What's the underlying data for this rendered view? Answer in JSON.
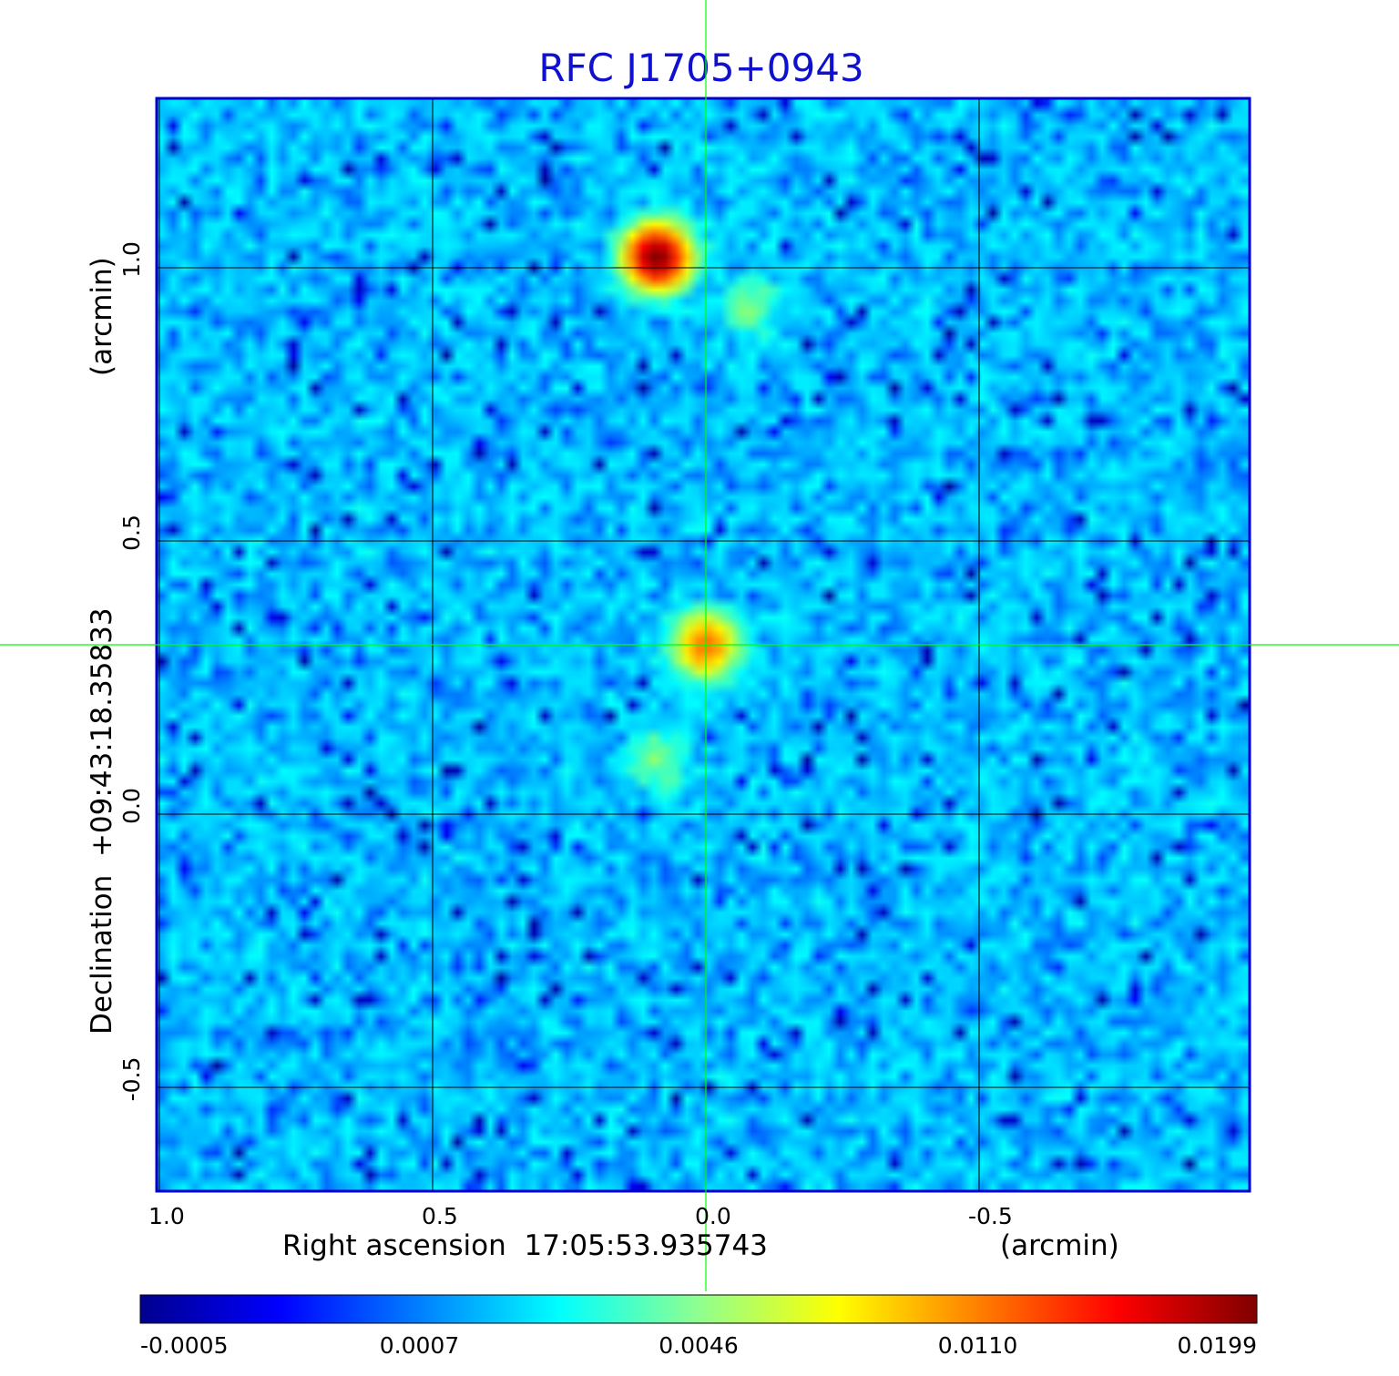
{
  "chart_data": {
    "type": "heatmap",
    "title": "RFC J1705+0943",
    "xlabel": "Right ascension  17:05:53.935743",
    "xunit": "(arcmin)",
    "ylabel": "Declination  +09:43:18.35833",
    "yunit": "(arcmin)",
    "x_ticks": [
      "1.0",
      "0.5",
      "0.0",
      "-0.5"
    ],
    "y_ticks": [
      "1.0",
      "0.5",
      "0.0",
      "-0.5"
    ],
    "x_tick_values": [
      1.0,
      0.5,
      0.0,
      -0.5
    ],
    "y_tick_values": [
      1.0,
      0.5,
      0.0,
      -0.5
    ],
    "xlim": [
      1.005,
      -0.995
    ],
    "ylim": [
      -0.69,
      1.31
    ],
    "grid": true,
    "crosshair": {
      "x": 0.0,
      "y": 0.31
    },
    "colormap": "jet",
    "colorbar": {
      "ticks": [
        "-0.0005",
        "0.0007",
        "0.0046",
        "0.0110",
        "0.0199"
      ],
      "range": [
        -0.0005,
        0.0199
      ]
    },
    "components": [
      {
        "x": 0.09,
        "y": 1.02,
        "peak": 0.0199
      },
      {
        "x": -0.08,
        "y": 0.93,
        "peak": 0.002
      },
      {
        "x": 0.0,
        "y": 0.31,
        "peak": 0.0095
      },
      {
        "x": 0.09,
        "y": 0.1,
        "peak": 0.0022
      }
    ],
    "colors": {
      "title": "#1010d0",
      "frame": "#0000cc",
      "grid": "#000000",
      "crosshair": "#00ff00"
    }
  }
}
